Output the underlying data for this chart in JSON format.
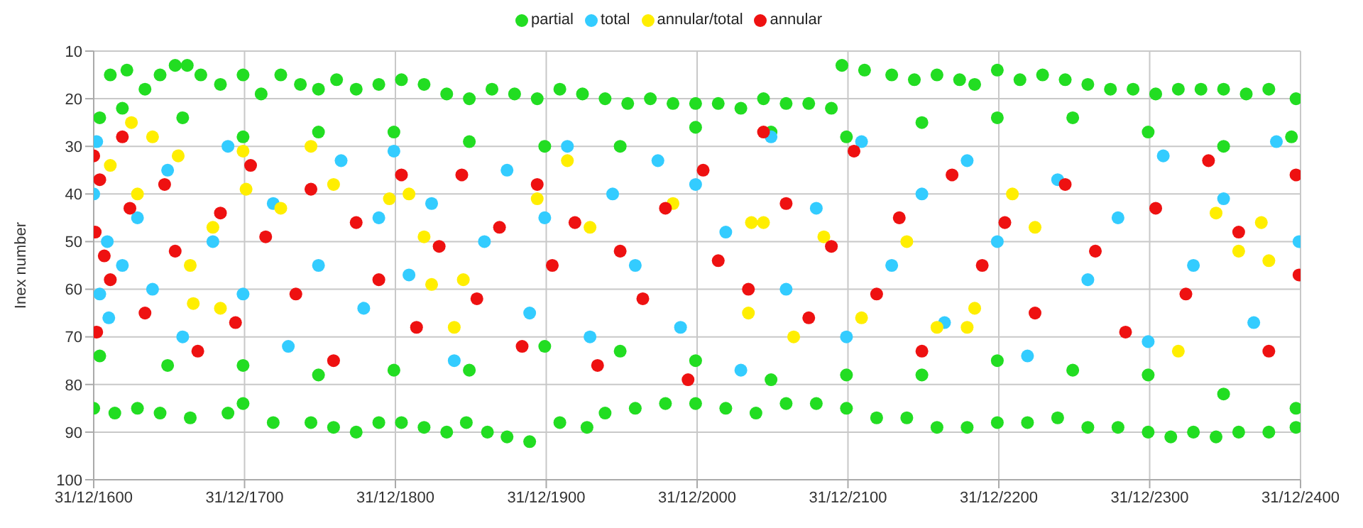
{
  "chart_data": {
    "type": "scatter",
    "ylabel": "Inex number",
    "xlim": [
      "1600-12-31",
      "2400-12-31"
    ],
    "xticks": [
      {
        "value": "1600-12-31",
        "label": "31/12/1600"
      },
      {
        "value": "1700-12-31",
        "label": "31/12/1700"
      },
      {
        "value": "1800-12-31",
        "label": "31/12/1800"
      },
      {
        "value": "1900-12-31",
        "label": "31/12/1900"
      },
      {
        "value": "2000-12-31",
        "label": "31/12/2000"
      },
      {
        "value": "2100-12-31",
        "label": "31/12/2100"
      },
      {
        "value": "2200-12-31",
        "label": "31/12/2200"
      },
      {
        "value": "2300-12-31",
        "label": "31/12/2300"
      },
      {
        "value": "2400-12-31",
        "label": "31/12/2400"
      }
    ],
    "ylim": [
      100,
      10
    ],
    "yticks": [
      10,
      20,
      30,
      40,
      50,
      60,
      70,
      80,
      90,
      100
    ],
    "grid": true,
    "legend": "top",
    "marker": "circle",
    "series": [
      {
        "name": "partial",
        "color": "#22dd22",
        "x": [
          "1605",
          "1612",
          "1623",
          "1635",
          "1645",
          "1655",
          "1663",
          "1672",
          "1685",
          "1700",
          "1712",
          "1725",
          "1738",
          "1750",
          "1762",
          "1775",
          "1790",
          "1805",
          "1820",
          "1835",
          "1850",
          "1865",
          "1880",
          "1895",
          "1910",
          "1925",
          "1940",
          "1955",
          "1970",
          "1985",
          "2000",
          "2015",
          "2030",
          "2045",
          "2060",
          "2075",
          "2090",
          "2097",
          "2112",
          "2130",
          "2145",
          "2160",
          "2175",
          "2185",
          "2200",
          "2215",
          "2230",
          "2245",
          "2260",
          "2275",
          "2290",
          "2305",
          "2320",
          "2335",
          "2350",
          "2365",
          "2380",
          "2398",
          "1620",
          "1660",
          "1700",
          "1750",
          "1800",
          "1850",
          "1900",
          "1950",
          "2000",
          "2050",
          "2100",
          "2150",
          "2200",
          "2250",
          "2300",
          "2350",
          "2395",
          "1601",
          "1615",
          "1630",
          "1645",
          "1665",
          "1690",
          "1700",
          "1720",
          "1745",
          "1760",
          "1775",
          "1790",
          "1805",
          "1820",
          "1835",
          "1848",
          "1862",
          "1875",
          "1890",
          "1910",
          "1928",
          "1940",
          "1960",
          "1980",
          "2000",
          "2020",
          "2040",
          "2060",
          "2080",
          "2100",
          "2120",
          "2140",
          "2160",
          "2180",
          "2200",
          "2220",
          "2240",
          "2260",
          "2280",
          "2300",
          "2315",
          "2330",
          "2345",
          "2360",
          "2380",
          "2398",
          "1605",
          "1650",
          "1700",
          "1750",
          "1800",
          "1850",
          "1900",
          "1950",
          "2000",
          "2050",
          "2100",
          "2150",
          "2200",
          "2250",
          "2300",
          "2350",
          "2398"
        ],
        "values": [
          24,
          15,
          14,
          18,
          15,
          13,
          13,
          15,
          17,
          15,
          19,
          15,
          17,
          18,
          16,
          18,
          17,
          16,
          17,
          19,
          20,
          18,
          19,
          20,
          18,
          19,
          20,
          21,
          20,
          21,
          21,
          21,
          22,
          20,
          21,
          21,
          22,
          13,
          14,
          15,
          16,
          15,
          16,
          17,
          14,
          16,
          15,
          16,
          17,
          18,
          18,
          19,
          18,
          18,
          18,
          19,
          18,
          20,
          22,
          24,
          28,
          27,
          27,
          29,
          30,
          30,
          26,
          27,
          28,
          25,
          24,
          24,
          27,
          30,
          28,
          85,
          86,
          85,
          86,
          87,
          86,
          84,
          88,
          88,
          89,
          90,
          88,
          88,
          89,
          90,
          88,
          90,
          91,
          92,
          88,
          89,
          86,
          85,
          84,
          84,
          85,
          86,
          84,
          84,
          85,
          87,
          87,
          89,
          89,
          88,
          88,
          87,
          89,
          89,
          90,
          91,
          90,
          91,
          90,
          90,
          89,
          74,
          76,
          76,
          78,
          77,
          77,
          72,
          73,
          75,
          79,
          78,
          78,
          75,
          77,
          78,
          82,
          85
        ]
      },
      {
        "name": "total",
        "color": "#33ccff",
        "x": [
          "1603",
          "1601",
          "1610",
          "1605",
          "1611",
          "1620",
          "1630",
          "1640",
          "1650",
          "1660",
          "1680",
          "1690",
          "1700",
          "1720",
          "1730",
          "1750",
          "1765",
          "1780",
          "1790",
          "1800",
          "1810",
          "1825",
          "1840",
          "1860",
          "1875",
          "1890",
          "1900",
          "1915",
          "1930",
          "1945",
          "1960",
          "1975",
          "1990",
          "2000",
          "2020",
          "2030",
          "2050",
          "2060",
          "2080",
          "2100",
          "2110",
          "2130",
          "2150",
          "2165",
          "2180",
          "2200",
          "2220",
          "2240",
          "2260",
          "2280",
          "2300",
          "2310",
          "2330",
          "2350",
          "2370",
          "2385",
          "2400"
        ],
        "values": [
          29,
          40,
          50,
          61,
          66,
          55,
          45,
          60,
          35,
          70,
          50,
          30,
          61,
          42,
          72,
          55,
          33,
          64,
          45,
          31,
          57,
          42,
          75,
          50,
          35,
          65,
          45,
          30,
          70,
          40,
          55,
          33,
          68,
          38,
          48,
          77,
          28,
          60,
          43,
          70,
          29,
          55,
          40,
          67,
          33,
          50,
          74,
          37,
          58,
          45,
          71,
          32,
          55,
          41,
          67,
          29,
          50
        ]
      },
      {
        "name": "annular/total",
        "color": "#ffee00",
        "x": [
          "1612",
          "1626",
          "1630",
          "1640",
          "1657",
          "1665",
          "1667",
          "1680",
          "1685",
          "1700",
          "1702",
          "1725",
          "1745",
          "1760",
          "1797",
          "1810",
          "1820",
          "1825",
          "1840",
          "1846",
          "1895",
          "1915",
          "1930",
          "1985",
          "2035",
          "2037",
          "2045",
          "2065",
          "2085",
          "2110",
          "2140",
          "2160",
          "2180",
          "2185",
          "2210",
          "2225",
          "2320",
          "2345",
          "2360",
          "2375",
          "2380"
        ],
        "values": [
          34,
          25,
          40,
          28,
          32,
          55,
          63,
          47,
          64,
          31,
          39,
          43,
          30,
          38,
          41,
          40,
          49,
          59,
          68,
          58,
          41,
          33,
          47,
          42,
          65,
          46,
          46,
          70,
          49,
          66,
          50,
          68,
          68,
          64,
          40,
          47,
          73,
          44,
          52,
          46,
          54
        ]
      },
      {
        "name": "annular",
        "color": "#ee1111",
        "x": [
          "1601",
          "1602",
          "1605",
          "1608",
          "1612",
          "1603",
          "1620",
          "1625",
          "1635",
          "1648",
          "1655",
          "1670",
          "1685",
          "1695",
          "1705",
          "1715",
          "1735",
          "1745",
          "1760",
          "1775",
          "1790",
          "1805",
          "1815",
          "1830",
          "1845",
          "1855",
          "1870",
          "1885",
          "1895",
          "1905",
          "1920",
          "1935",
          "1950",
          "1965",
          "1980",
          "1995",
          "2005",
          "2015",
          "2035",
          "2045",
          "2060",
          "2075",
          "2090",
          "2105",
          "2120",
          "2135",
          "2150",
          "2170",
          "2190",
          "2205",
          "2225",
          "2245",
          "2265",
          "2285",
          "2305",
          "2325",
          "2340",
          "2360",
          "2380",
          "2400",
          "2398"
        ],
        "values": [
          32,
          48,
          37,
          53,
          58,
          69,
          28,
          43,
          65,
          38,
          52,
          73,
          44,
          67,
          34,
          49,
          61,
          39,
          75,
          46,
          58,
          36,
          68,
          51,
          36,
          62,
          47,
          72,
          38,
          55,
          46,
          76,
          52,
          62,
          43,
          79,
          35,
          54,
          60,
          27,
          42,
          66,
          51,
          31,
          61,
          45,
          73,
          36,
          55,
          46,
          65,
          38,
          52,
          69,
          43,
          61,
          33,
          48,
          73,
          57,
          36
        ]
      }
    ]
  }
}
